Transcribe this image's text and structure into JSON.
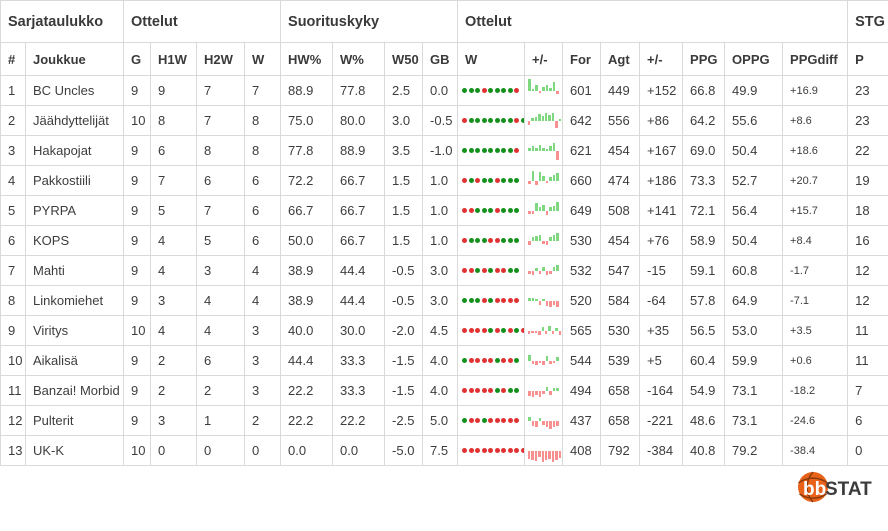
{
  "colors": {
    "win_dot": "#14911c",
    "loss_dot": "#e03232",
    "bar_win": "#7fd87f",
    "bar_loss": "#f89090",
    "logo_orange": "#e8621a",
    "logo_seam": "#8a3a0a",
    "logo_text_dark": "#3c3c3c"
  },
  "header": {
    "groups": [
      {
        "label": "Sarjataulukko"
      },
      {
        "label": "Ottelut"
      },
      {
        "label": "Suorituskyky"
      },
      {
        "label": "Ottelut"
      },
      {
        "label": "STG"
      }
    ],
    "columns": [
      "#",
      "Joukkue",
      "G",
      "H1W",
      "H2W",
      "W",
      "HW%",
      "W%",
      "W50",
      "GB",
      "W",
      "+/-",
      "For",
      "Agt",
      "+/-",
      "PPG",
      "OPPG",
      "PPGdiff",
      "P"
    ]
  },
  "rows": [
    {
      "rank": "1",
      "team": "BC Uncles",
      "g": "9",
      "h1w": "9",
      "h2w": "7",
      "w": "7",
      "hw_pct": "88.9",
      "w_pct": "77.8",
      "w50": "2.5",
      "gb": "0.0",
      "results": [
        "W",
        "W",
        "W",
        "L",
        "W",
        "W",
        "W",
        "W",
        "L"
      ],
      "margins": [
        38,
        6,
        20,
        -4,
        14,
        18,
        8,
        30,
        -10
      ],
      "for": "601",
      "agt": "449",
      "plus_minus": "+152",
      "ppg": "66.8",
      "oppg": "49.9",
      "ppg_diff": "+16.9",
      "p": "23"
    },
    {
      "rank": "2",
      "team": "Jäähdyttelijät",
      "g": "10",
      "h1w": "8",
      "h2w": "7",
      "w": "8",
      "hw_pct": "75.0",
      "w_pct": "80.0",
      "w50": "3.0",
      "gb": "-0.5",
      "results": [
        "L",
        "W",
        "W",
        "W",
        "W",
        "W",
        "W",
        "W",
        "L",
        "W"
      ],
      "margins": [
        -14,
        8,
        14,
        22,
        16,
        26,
        18,
        24,
        -22,
        6
      ],
      "for": "642",
      "agt": "556",
      "plus_minus": "+86",
      "ppg": "64.2",
      "oppg": "55.6",
      "ppg_diff": "+8.6",
      "p": "23"
    },
    {
      "rank": "3",
      "team": "Hakapojat",
      "g": "9",
      "h1w": "6",
      "h2w": "8",
      "w": "8",
      "hw_pct": "77.8",
      "w_pct": "88.9",
      "w50": "3.5",
      "gb": "-1.0",
      "results": [
        "W",
        "W",
        "W",
        "W",
        "W",
        "W",
        "W",
        "W",
        "L"
      ],
      "margins": [
        10,
        16,
        8,
        18,
        10,
        6,
        16,
        24,
        -30
      ],
      "for": "621",
      "agt": "454",
      "plus_minus": "+167",
      "ppg": "69.0",
      "oppg": "50.4",
      "ppg_diff": "+18.6",
      "p": "22"
    },
    {
      "rank": "4",
      "team": "Pakkostiili",
      "g": "9",
      "h1w": "7",
      "h2w": "6",
      "w": "6",
      "hw_pct": "72.2",
      "w_pct": "66.7",
      "w50": "1.5",
      "gb": "1.0",
      "results": [
        "L",
        "W",
        "L",
        "W",
        "W",
        "L",
        "W",
        "W",
        "W"
      ],
      "margins": [
        -8,
        32,
        -12,
        28,
        16,
        -6,
        12,
        18,
        26
      ],
      "for": "660",
      "agt": "474",
      "plus_minus": "+186",
      "ppg": "73.3",
      "oppg": "52.7",
      "ppg_diff": "+20.7",
      "p": "19"
    },
    {
      "rank": "5",
      "team": "PYRPA",
      "g": "9",
      "h1w": "5",
      "h2w": "7",
      "w": "6",
      "hw_pct": "66.7",
      "w_pct": "66.7",
      "w50": "1.5",
      "gb": "1.0",
      "results": [
        "L",
        "L",
        "W",
        "W",
        "W",
        "L",
        "W",
        "W",
        "W"
      ],
      "margins": [
        -10,
        -8,
        26,
        14,
        18,
        -12,
        12,
        16,
        28
      ],
      "for": "649",
      "agt": "508",
      "plus_minus": "+141",
      "ppg": "72.1",
      "oppg": "56.4",
      "ppg_diff": "+15.7",
      "p": "18"
    },
    {
      "rank": "6",
      "team": "KOPS",
      "g": "9",
      "h1w": "4",
      "h2w": "5",
      "w": "6",
      "hw_pct": "50.0",
      "w_pct": "66.7",
      "w50": "1.5",
      "gb": "1.0",
      "results": [
        "L",
        "W",
        "W",
        "W",
        "L",
        "L",
        "W",
        "W",
        "W"
      ],
      "margins": [
        -12,
        12,
        16,
        20,
        -8,
        -14,
        14,
        18,
        24
      ],
      "for": "530",
      "agt": "454",
      "plus_minus": "+76",
      "ppg": "58.9",
      "oppg": "50.4",
      "ppg_diff": "+8.4",
      "p": "16"
    },
    {
      "rank": "7",
      "team": "Mahti",
      "g": "9",
      "h1w": "4",
      "h2w": "3",
      "w": "4",
      "hw_pct": "38.9",
      "w_pct": "44.4",
      "w50": "-0.5",
      "gb": "3.0",
      "results": [
        "L",
        "L",
        "W",
        "L",
        "W",
        "L",
        "L",
        "W",
        "W"
      ],
      "margins": [
        -10,
        -14,
        10,
        -8,
        12,
        -12,
        -10,
        14,
        18
      ],
      "for": "532",
      "agt": "547",
      "plus_minus": "-15",
      "ppg": "59.1",
      "oppg": "60.8",
      "ppg_diff": "-1.7",
      "p": "12"
    },
    {
      "rank": "8",
      "team": "Linkomiehet",
      "g": "9",
      "h1w": "3",
      "h2w": "4",
      "w": "4",
      "hw_pct": "38.9",
      "w_pct": "44.4",
      "w50": "-0.5",
      "gb": "3.0",
      "results": [
        "W",
        "W",
        "W",
        "L",
        "W",
        "L",
        "L",
        "L",
        "L"
      ],
      "margins": [
        10,
        8,
        6,
        -12,
        7,
        -16,
        -20,
        -14,
        -18
      ],
      "for": "520",
      "agt": "584",
      "plus_minus": "-64",
      "ppg": "57.8",
      "oppg": "64.9",
      "ppg_diff": "-7.1",
      "p": "12"
    },
    {
      "rank": "9",
      "team": "Viritys",
      "g": "10",
      "h1w": "4",
      "h2w": "4",
      "w": "3",
      "hw_pct": "40.0",
      "w_pct": "30.0",
      "w50": "-2.0",
      "gb": "4.5",
      "results": [
        "L",
        "L",
        "L",
        "L",
        "W",
        "L",
        "W",
        "L",
        "W",
        "L"
      ],
      "margins": [
        -8,
        -6,
        -7,
        -12,
        14,
        -9,
        16,
        -8,
        10,
        -13
      ],
      "for": "565",
      "agt": "530",
      "plus_minus": "+35",
      "ppg": "56.5",
      "oppg": "53.0",
      "ppg_diff": "+3.5",
      "p": "11"
    },
    {
      "rank": "10",
      "team": "Aikalisä",
      "g": "9",
      "h1w": "2",
      "h2w": "6",
      "w": "3",
      "hw_pct": "44.4",
      "w_pct": "33.3",
      "w50": "-1.5",
      "gb": "4.0",
      "results": [
        "W",
        "L",
        "L",
        "L",
        "L",
        "W",
        "L",
        "L",
        "W"
      ],
      "margins": [
        20,
        -9,
        -12,
        -7,
        -14,
        16,
        -9,
        -6,
        12
      ],
      "for": "544",
      "agt": "539",
      "plus_minus": "+5",
      "ppg": "60.4",
      "oppg": "59.9",
      "ppg_diff": "+0.6",
      "p": "11"
    },
    {
      "rank": "11",
      "team": "Banzai! Morbid",
      "g": "9",
      "h1w": "2",
      "h2w": "2",
      "w": "3",
      "hw_pct": "22.2",
      "w_pct": "33.3",
      "w50": "-1.5",
      "gb": "4.0",
      "results": [
        "L",
        "L",
        "L",
        "L",
        "L",
        "W",
        "L",
        "W",
        "W"
      ],
      "margins": [
        -16,
        -20,
        -12,
        -18,
        -9,
        12,
        -14,
        10,
        8
      ],
      "for": "494",
      "agt": "658",
      "plus_minus": "-164",
      "ppg": "54.9",
      "oppg": "73.1",
      "ppg_diff": "-18.2",
      "p": "7"
    },
    {
      "rank": "12",
      "team": "Pulterit",
      "g": "9",
      "h1w": "3",
      "h2w": "1",
      "w": "2",
      "hw_pct": "22.2",
      "w_pct": "22.2",
      "w50": "-2.5",
      "gb": "5.0",
      "results": [
        "W",
        "L",
        "L",
        "W",
        "L",
        "L",
        "L",
        "L",
        "L"
      ],
      "margins": [
        12,
        -16,
        -20,
        10,
        -14,
        -18,
        -24,
        -20,
        -16
      ],
      "for": "437",
      "agt": "658",
      "plus_minus": "-221",
      "ppg": "48.6",
      "oppg": "73.1",
      "ppg_diff": "-24.6",
      "p": "6"
    },
    {
      "rank": "13",
      "team": "UK-K",
      "g": "10",
      "h1w": "0",
      "h2w": "0",
      "w": "0",
      "hw_pct": "0.0",
      "w_pct": "0.0",
      "w50": "-5.0",
      "gb": "7.5",
      "results": [
        "L",
        "L",
        "L",
        "L",
        "L",
        "L",
        "L",
        "L",
        "L",
        "L"
      ],
      "margins": [
        -24,
        -28,
        -32,
        -20,
        -36,
        -30,
        -24,
        -34,
        -28,
        -22
      ],
      "for": "408",
      "agt": "792",
      "plus_minus": "-384",
      "ppg": "40.8",
      "oppg": "79.2",
      "ppg_diff": "-38.4",
      "p": "0"
    }
  ],
  "logo": {
    "bb": "bb",
    "stat": "STAT"
  }
}
